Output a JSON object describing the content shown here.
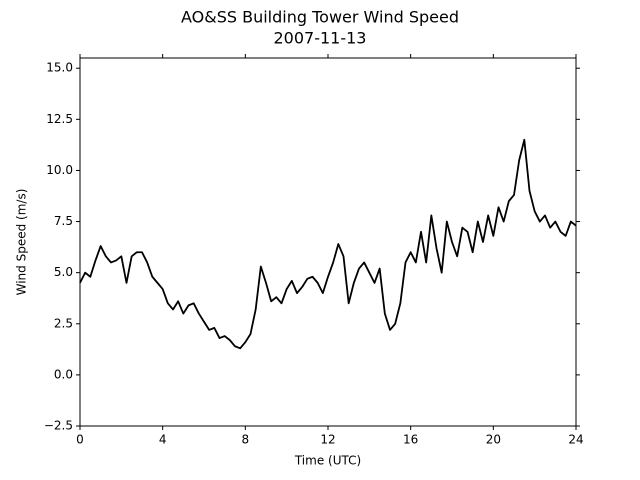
{
  "chart_data": {
    "type": "line",
    "title": "AO&SS Building Tower Wind Speed",
    "subtitle": "2007-11-13",
    "x_label": "Time (UTC)",
    "y_label": "Wind Speed (m/s)",
    "color": "#000000",
    "x": [
      0,
      0.25,
      0.5,
      0.75,
      1,
      1.25,
      1.5,
      1.75,
      2,
      2.25,
      2.5,
      2.75,
      3,
      3.25,
      3.5,
      3.75,
      4,
      4.25,
      4.5,
      4.75,
      5,
      5.25,
      5.5,
      5.75,
      6,
      6.25,
      6.5,
      6.75,
      7,
      7.25,
      7.5,
      7.75,
      8,
      8.25,
      8.5,
      8.75,
      9,
      9.25,
      9.5,
      9.75,
      10,
      10.25,
      10.5,
      10.75,
      11,
      11.25,
      11.5,
      11.75,
      12,
      12.25,
      12.5,
      12.75,
      13,
      13.25,
      13.5,
      13.75,
      14,
      14.25,
      14.5,
      14.75,
      15,
      15.25,
      15.5,
      15.75,
      16,
      16.25,
      16.5,
      16.75,
      17,
      17.25,
      17.5,
      17.75,
      18,
      18.25,
      18.5,
      18.75,
      19,
      19.25,
      19.5,
      19.75,
      20,
      20.25,
      20.5,
      20.75,
      21,
      21.25,
      21.5,
      21.75,
      22,
      22.25,
      22.5,
      22.75,
      23,
      23.25,
      23.5,
      23.75,
      24
    ],
    "values": [
      4.5,
      5.0,
      4.8,
      5.6,
      6.3,
      5.8,
      5.5,
      5.6,
      5.8,
      4.5,
      5.8,
      6.0,
      6.0,
      5.5,
      4.8,
      4.5,
      4.2,
      3.5,
      3.2,
      3.6,
      3.0,
      3.4,
      3.5,
      3.0,
      2.6,
      2.2,
      2.3,
      1.8,
      1.9,
      1.7,
      1.4,
      1.3,
      1.6,
      2.0,
      3.2,
      5.3,
      4.5,
      3.6,
      3.8,
      3.5,
      4.2,
      4.6,
      4.0,
      4.3,
      4.7,
      4.8,
      4.5,
      4.0,
      4.8,
      5.5,
      6.4,
      5.8,
      3.5,
      4.5,
      5.2,
      5.5,
      5.0,
      4.5,
      5.2,
      3.0,
      2.2,
      2.5,
      3.5,
      5.5,
      6.0,
      5.5,
      7.0,
      5.5,
      7.8,
      6.2,
      5.0,
      7.5,
      6.5,
      5.8,
      7.2,
      7.0,
      6.0,
      7.5,
      6.5,
      7.8,
      6.8,
      8.2,
      7.5,
      8.5,
      8.8,
      10.5,
      11.5,
      9.0,
      8.0,
      7.5,
      7.8,
      7.2,
      7.5,
      7.0,
      6.8,
      7.5,
      7.3
    ],
    "xlim": [
      0,
      24
    ],
    "xticks": [
      0,
      4,
      8,
      12,
      16,
      20,
      24
    ],
    "ylim": [
      -2.5,
      15.5
    ],
    "yticks": [
      {
        "value": -2.5,
        "label": "−2.5"
      },
      {
        "value": 0,
        "label": "0.0"
      },
      2.5,
      {
        "value": 5,
        "label": "5.0"
      },
      7.5,
      {
        "value": 10,
        "label": "10.0"
      },
      12.5,
      {
        "value": 15,
        "label": "15.0"
      }
    ]
  }
}
